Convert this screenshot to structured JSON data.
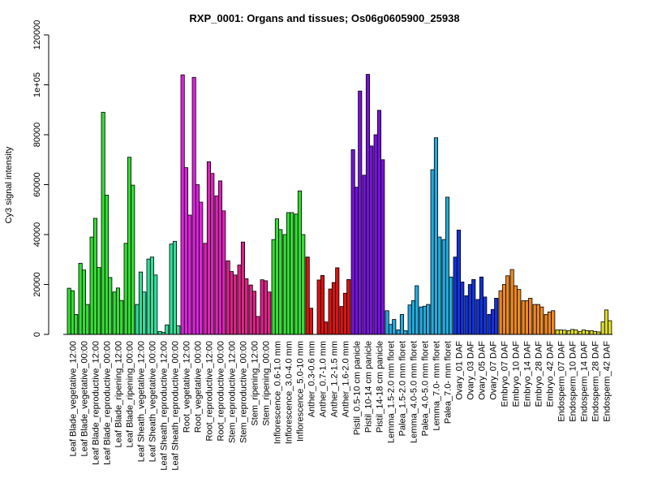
{
  "chart_data": {
    "type": "bar",
    "title": "RXP_0001: Organs and tissues; Os06g0605900_25938",
    "ylabel": "Cy3 signal intensity",
    "xlabel": "",
    "ylim": [
      0,
      120000
    ],
    "yticks": [
      0,
      20000,
      40000,
      60000,
      80000,
      "1e+05",
      120000
    ],
    "ytick_labels": [
      "0",
      "20000",
      "40000",
      "60000",
      "80000",
      "1e+05",
      "120000"
    ],
    "grid": false,
    "legend": "none",
    "groups": [
      {
        "label": "Leaf Blade_vegetative_12:00",
        "color": "#33dd33",
        "values": [
          18500,
          17500,
          8000
        ]
      },
      {
        "label": "Leaf Blade_vegetative_00:00",
        "color": "#33dd33",
        "values": [
          28500,
          25800,
          12000
        ]
      },
      {
        "label": "Leaf Blade_reproductive_12:00",
        "color": "#33dd33",
        "values": [
          39000,
          46500,
          26800
        ]
      },
      {
        "label": "Leaf Blade_reproductive_00:00",
        "color": "#33dd33",
        "values": [
          89000,
          55800,
          22800
        ]
      },
      {
        "label": "Leaf Blade_ripening_12:00",
        "color": "#33dd33",
        "values": [
          17000,
          18600,
          13600
        ]
      },
      {
        "label": "Leaf Blade_ripening_00:00",
        "color": "#33dd33",
        "values": [
          36500,
          71000,
          59800
        ]
      },
      {
        "label": "Leaf Sheath_vegetative_12:00",
        "color": "#33dd99",
        "values": [
          12000,
          25000,
          17000
        ]
      },
      {
        "label": "Leaf Sheath_vegetative_00:00",
        "color": "#33dd99",
        "values": [
          30200,
          31000,
          23800
        ]
      },
      {
        "label": "Leaf Sheath_reproductive_12:00",
        "color": "#33dd99",
        "values": [
          1200,
          800,
          3800
        ]
      },
      {
        "label": "Leaf Sheath_reproductive_00:00",
        "color": "#33dd99",
        "values": [
          36200,
          37300,
          3500
        ]
      },
      {
        "label": "Root_vegetative_12:00",
        "color": "#dd22dd",
        "values": [
          104000,
          66800,
          47800
        ]
      },
      {
        "label": "Root_vegetative_00:00",
        "color": "#dd22dd",
        "values": [
          103000,
          60000,
          53000
        ]
      },
      {
        "label": "Root_reproductive_12:00",
        "color": "#dd22bb",
        "values": [
          36500,
          69200,
          64500
        ]
      },
      {
        "label": "Root_reproductive_00:00",
        "color": "#dd22bb",
        "values": [
          55500,
          61500,
          49500
        ]
      },
      {
        "label": "Stem_reproductive_12:00",
        "color": "#dd2288",
        "values": [
          29500,
          25200,
          23800
        ]
      },
      {
        "label": "Stem_reproductive_00:00",
        "color": "#dd2288",
        "values": [
          27800,
          37000,
          22300
        ]
      },
      {
        "label": "Stem_ripening_12:00",
        "color": "#dd2288",
        "values": [
          19800,
          17300,
          7200
        ]
      },
      {
        "label": "Stem_ripening_00:00",
        "color": "#dd2288",
        "values": [
          21900,
          21500,
          17000
        ]
      },
      {
        "label": "Inflorescence_0.6-1.0 mm",
        "color": "#33dd33",
        "values": [
          38000,
          46300,
          42000
        ]
      },
      {
        "label": "Inflorescence_3.0-4.0 mm",
        "color": "#33dd33",
        "values": [
          40000,
          48800,
          48800
        ]
      },
      {
        "label": "Inflorescence_5.0-10 mm",
        "color": "#33dd33",
        "values": [
          48200,
          57500,
          40000
        ]
      },
      {
        "label": "Anther_0.3-0.6 mm",
        "color": "#dd1111",
        "values": [
          31000,
          10500,
          0
        ]
      },
      {
        "label": "Anther_0.7-1.0 mm",
        "color": "#dd1111",
        "values": [
          21800,
          23600,
          5000
        ]
      },
      {
        "label": "Anther_1.2-1.5 mm",
        "color": "#dd1111",
        "values": [
          18200,
          20800,
          26700
        ]
      },
      {
        "label": "Anther_1.6-2.0 mm",
        "color": "#dd1111",
        "values": [
          11200,
          16500,
          22000
        ]
      },
      {
        "label": "Pistil_0.5-10 cm panicle",
        "color": "#7711dd",
        "values": [
          74000,
          59000,
          97500
        ]
      },
      {
        "label": "Pistil_10-14 cm panicle",
        "color": "#7711dd",
        "values": [
          63800,
          104200,
          75500
        ]
      },
      {
        "label": "Pistil_14-18 cm panicle",
        "color": "#7711dd",
        "values": [
          80000,
          89800,
          70000
        ]
      },
      {
        "label": "Lemma_1.5-2.0 mm floret",
        "color": "#22aadd",
        "values": [
          9500,
          4000,
          6000
        ]
      },
      {
        "label": "Palea_1.5-2.0 mm floret",
        "color": "#22aadd",
        "values": [
          1800,
          8000,
          1500
        ]
      },
      {
        "label": "Lemma_4.0-5.0 mm floret",
        "color": "#22aadd",
        "values": [
          11800,
          13500,
          19500
        ]
      },
      {
        "label": "Palea_4.0-5.0 mm floret",
        "color": "#22aadd",
        "values": [
          11000,
          11300,
          12000
        ]
      },
      {
        "label": "Lemma_7.0- mm floret",
        "color": "#22aadd",
        "values": [
          66000,
          78800,
          39000
        ]
      },
      {
        "label": "Palea_7.0- mm floret",
        "color": "#22aadd",
        "values": [
          38000,
          55000,
          23000
        ]
      },
      {
        "label": "Ovary_01 DAF",
        "color": "#1133dd",
        "values": [
          31000,
          41800,
          21000
        ]
      },
      {
        "label": "Ovary_03 DAF",
        "color": "#1133dd",
        "values": [
          15500,
          20000,
          22000
        ]
      },
      {
        "label": "Ovary_05 DAF",
        "color": "#1133dd",
        "values": [
          14000,
          23000,
          15000
        ]
      },
      {
        "label": "Ovary_07 DAF",
        "color": "#1133dd",
        "values": [
          8000,
          10000,
          14500
        ]
      },
      {
        "label": "Embryo_07 DAF",
        "color": "#ee8822",
        "values": [
          17500,
          20000,
          23500
        ]
      },
      {
        "label": "Embryo_10 DAF",
        "color": "#ee8822",
        "values": [
          26000,
          19500,
          18000
        ]
      },
      {
        "label": "Embryo_14 DAF",
        "color": "#ee8822",
        "values": [
          13500,
          13500,
          14500
        ]
      },
      {
        "label": "Embryo_28 DAF",
        "color": "#ee8822",
        "values": [
          12000,
          12000,
          11000
        ]
      },
      {
        "label": "Embryo_42 DAF",
        "color": "#ee8822",
        "values": [
          8000,
          9000,
          9500
        ]
      },
      {
        "label": "Endosperm_07 DAF",
        "color": "#dddd22",
        "values": [
          1800,
          1800,
          1700
        ]
      },
      {
        "label": "Endosperm_10 DAF",
        "color": "#dddd22",
        "values": [
          1500,
          2000,
          1800
        ]
      },
      {
        "label": "Endosperm_14 DAF",
        "color": "#dddd22",
        "values": [
          1200,
          1800,
          1500
        ]
      },
      {
        "label": "Endosperm_28 DAF",
        "color": "#dddd22",
        "values": [
          1500,
          1200,
          1000
        ]
      },
      {
        "label": "Endosperm_42 DAF",
        "color": "#dddd22",
        "values": [
          5000,
          9800,
          5500
        ]
      }
    ]
  }
}
